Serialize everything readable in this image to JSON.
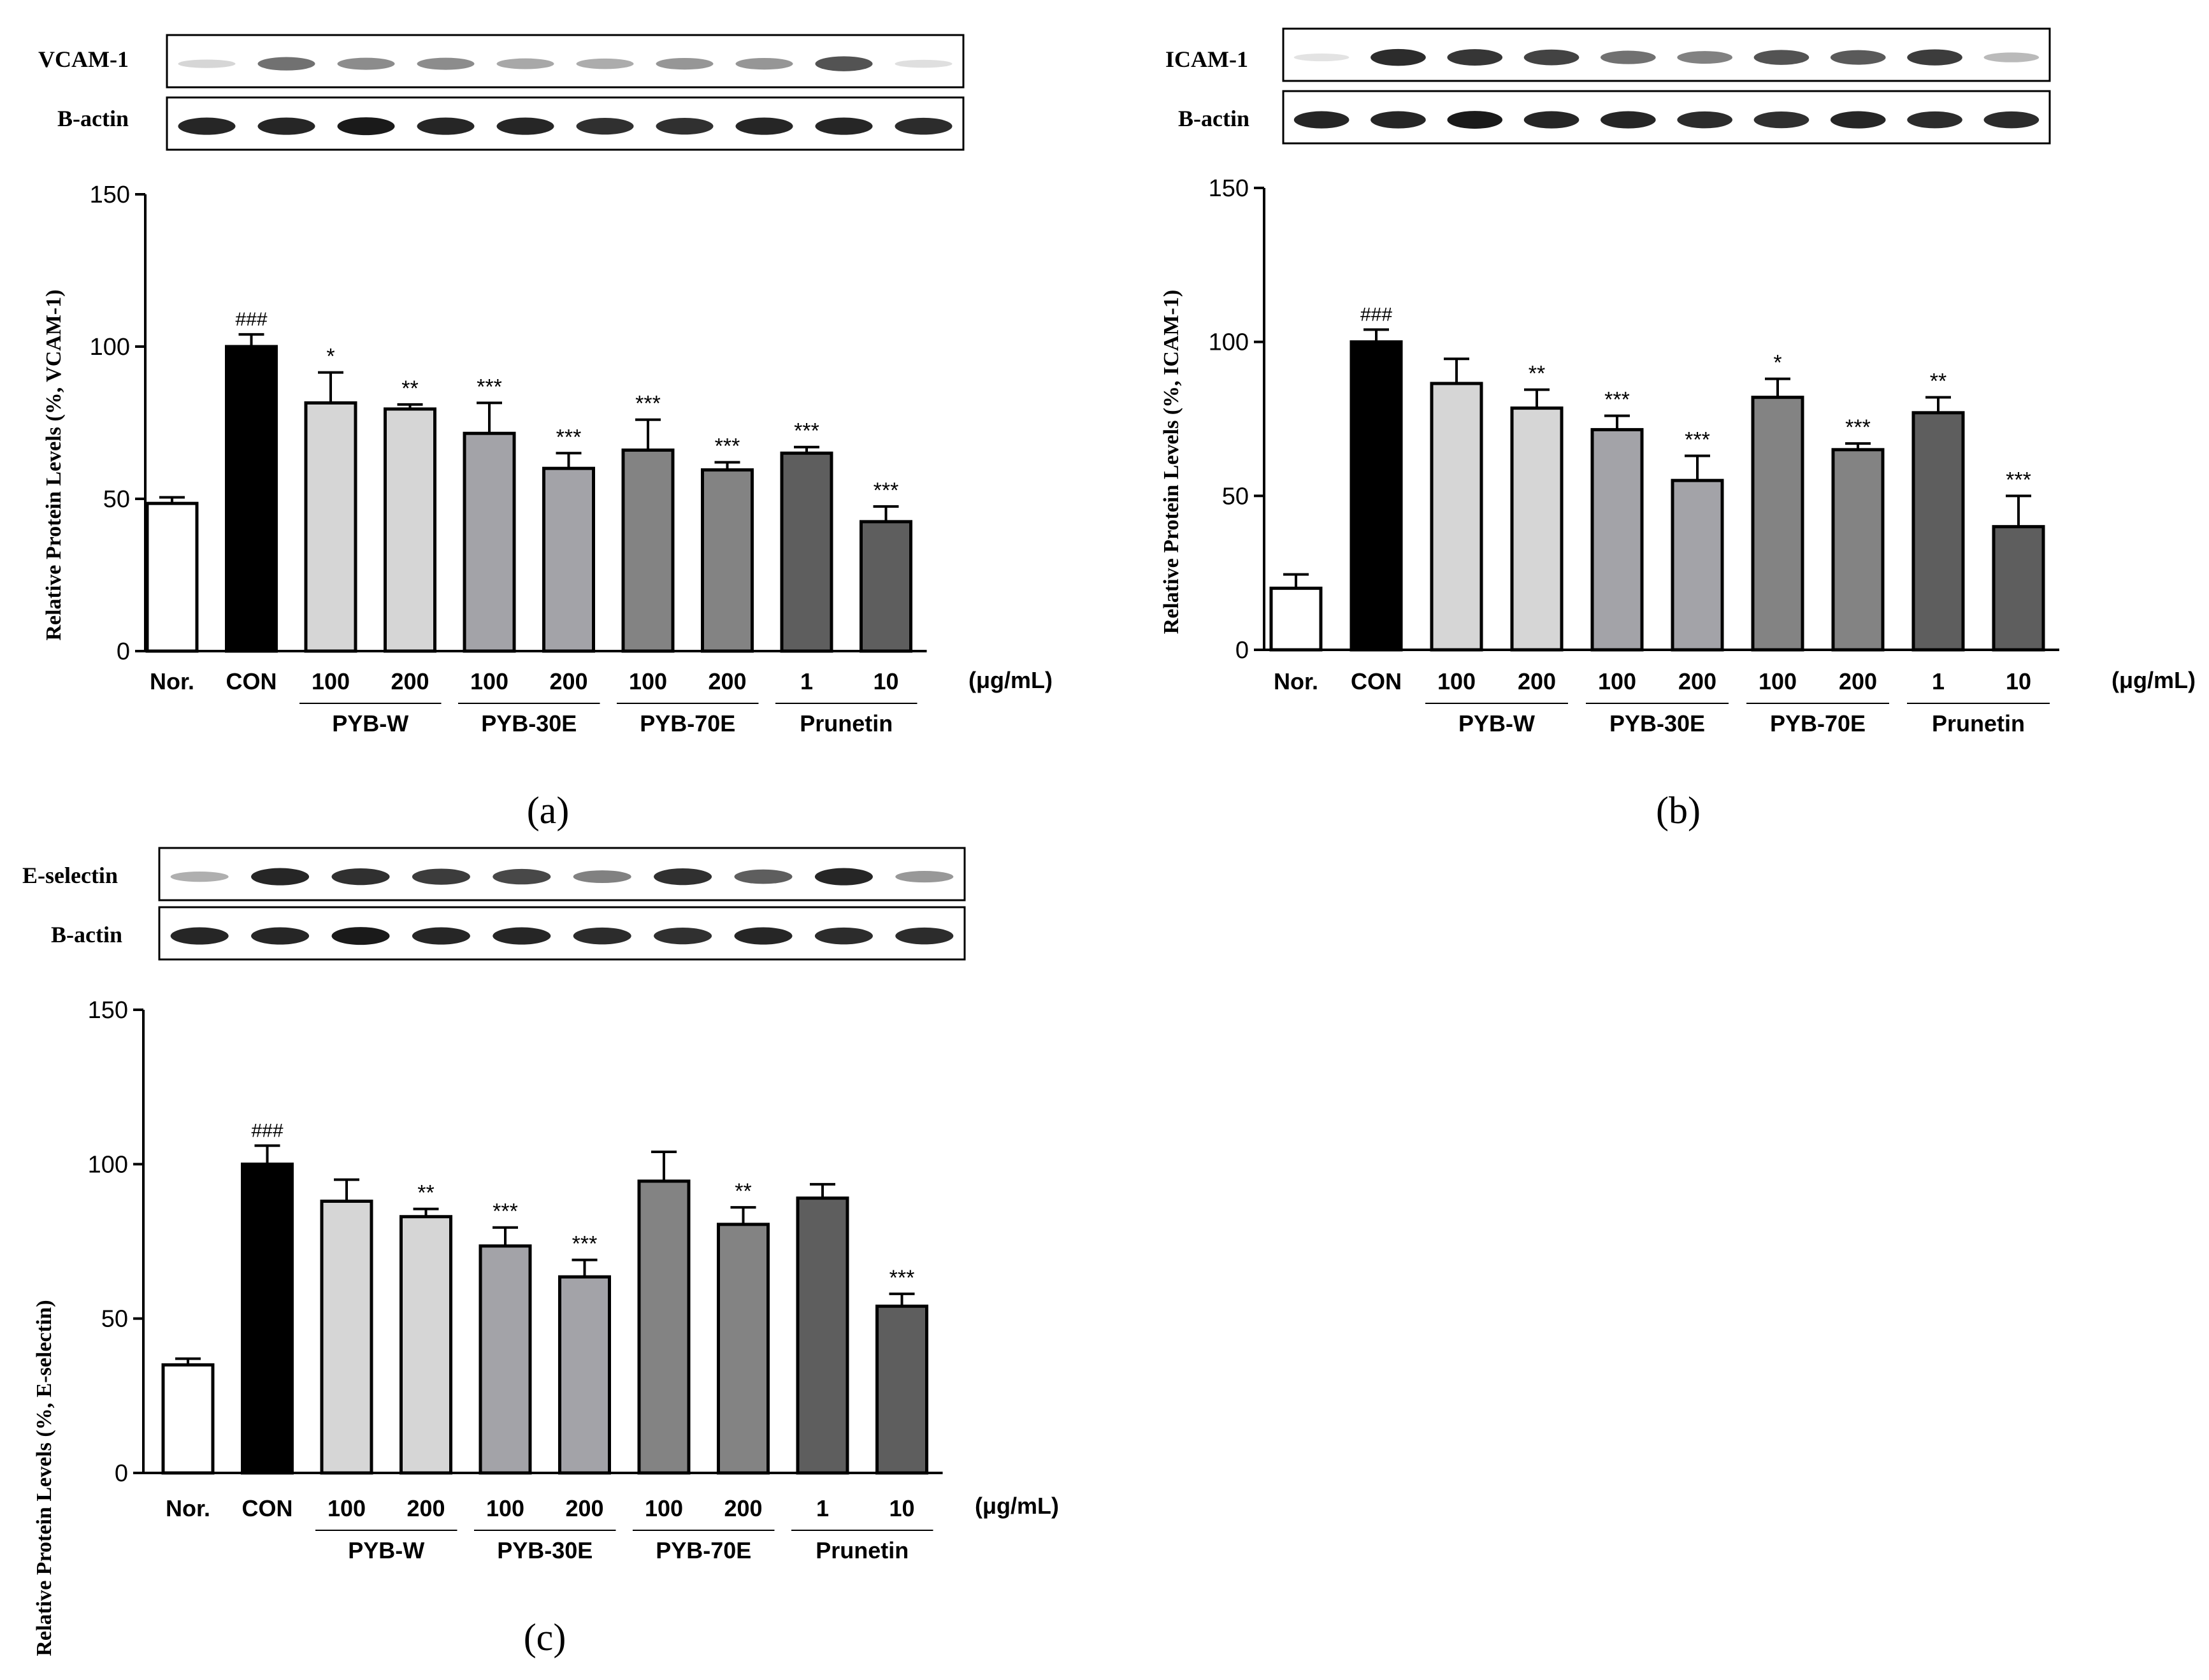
{
  "figure": {
    "units_label": "(μg/mL)",
    "loading_control": "B-actin",
    "x_tick_labels": [
      "Nor.",
      "CON",
      "100",
      "200",
      "100",
      "200",
      "100",
      "200",
      "1",
      "10"
    ],
    "groups": [
      {
        "name": "PYB-W",
        "bars": [
          2,
          3
        ]
      },
      {
        "name": "PYB-30E",
        "bars": [
          4,
          5
        ]
      },
      {
        "name": "PYB-70E",
        "bars": [
          6,
          7
        ]
      },
      {
        "name": "Prunetin",
        "bars": [
          8,
          9
        ]
      }
    ],
    "colors": {
      "bars": [
        "#ffffff",
        "#000000",
        "#d6d6d6",
        "#d6d6d6",
        "#a3a3a8",
        "#a3a3a8",
        "#838383",
        "#838383",
        "#5e5e5e",
        "#5e5e5e"
      ],
      "band": "#1a1a1a"
    }
  },
  "chart_data": [
    {
      "type": "bar",
      "panel_label": "(a)",
      "blot_label": "VCAM-1",
      "ylabel": "Relative Protein Levels (%, VCAM-1)",
      "ylim": [
        0,
        150
      ],
      "yticks": [
        0,
        50,
        100,
        150
      ],
      "categories": [
        "Nor.",
        "CON",
        "PYB-W 100",
        "PYB-W 200",
        "PYB-30E 100",
        "PYB-30E 200",
        "PYB-70E 100",
        "PYB-70E 200",
        "Prunetin 1",
        "Prunetin 10"
      ],
      "values": [
        48.5,
        100,
        81.5,
        79.5,
        71.5,
        60,
        66,
        59.5,
        65,
        42.5
      ],
      "errors": [
        2,
        4,
        10,
        1.5,
        10,
        5,
        10,
        2.5,
        2,
        5
      ],
      "annotations": [
        "",
        "###",
        "*",
        "**",
        "***",
        "***",
        "***",
        "***",
        "***",
        "***"
      ],
      "blot_target_intensity": [
        0.18,
        0.62,
        0.5,
        0.5,
        0.38,
        0.36,
        0.46,
        0.46,
        0.75,
        0.14
      ],
      "blot_actin_intensity": [
        0.95,
        0.95,
        1.0,
        0.95,
        0.95,
        0.9,
        0.9,
        0.95,
        0.95,
        0.92
      ]
    },
    {
      "type": "bar",
      "panel_label": "(b)",
      "blot_label": "ICAM-1",
      "ylabel": "Relative Protein Levels (%, ICAM-1)",
      "ylim": [
        0,
        150
      ],
      "yticks": [
        0,
        50,
        100,
        150
      ],
      "categories": [
        "Nor.",
        "CON",
        "PYB-W 100",
        "PYB-W 200",
        "PYB-30E 100",
        "PYB-30E 200",
        "PYB-70E 100",
        "PYB-70E 200",
        "Prunetin 1",
        "Prunetin 10"
      ],
      "values": [
        20,
        100,
        86.5,
        78.5,
        71.5,
        55,
        82,
        65,
        77,
        40
      ],
      "errors": [
        4.5,
        4,
        8,
        6,
        4.5,
        8,
        6,
        2,
        5,
        10
      ],
      "annotations": [
        "",
        "###",
        "",
        "**",
        "***",
        "***",
        "*",
        "***",
        "**",
        "***"
      ],
      "blot_target_intensity": [
        0.12,
        0.92,
        0.88,
        0.82,
        0.62,
        0.55,
        0.75,
        0.72,
        0.85,
        0.3
      ],
      "blot_actin_intensity": [
        0.95,
        0.95,
        1.0,
        0.95,
        0.95,
        0.92,
        0.9,
        0.95,
        0.92,
        0.92
      ]
    },
    {
      "type": "bar",
      "panel_label": "(c)",
      "blot_label": "E-selectin",
      "ylabel": "Relative Protein Levels (%, E-selectin)",
      "ylim": [
        0,
        150
      ],
      "yticks": [
        0,
        50,
        100,
        150
      ],
      "categories": [
        "Nor.",
        "CON",
        "PYB-W 100",
        "PYB-W 200",
        "PYB-30E 100",
        "PYB-30E 200",
        "PYB-70E 100",
        "PYB-70E 200",
        "Prunetin 1",
        "Prunetin 10"
      ],
      "values": [
        35,
        100,
        88,
        83,
        73.5,
        63.5,
        94.5,
        80.5,
        89,
        54
      ],
      "errors": [
        2,
        6,
        7,
        2.5,
        6,
        5.5,
        9.5,
        5.5,
        4.5,
        4
      ],
      "annotations": [
        "",
        "###",
        "",
        "**",
        "***",
        "***",
        "",
        "**",
        "",
        "***"
      ],
      "blot_target_intensity": [
        0.35,
        0.95,
        0.9,
        0.85,
        0.8,
        0.55,
        0.9,
        0.7,
        0.95,
        0.45
      ],
      "blot_actin_intensity": [
        0.95,
        0.95,
        1.0,
        0.95,
        0.95,
        0.92,
        0.9,
        0.95,
        0.92,
        0.92
      ]
    }
  ]
}
